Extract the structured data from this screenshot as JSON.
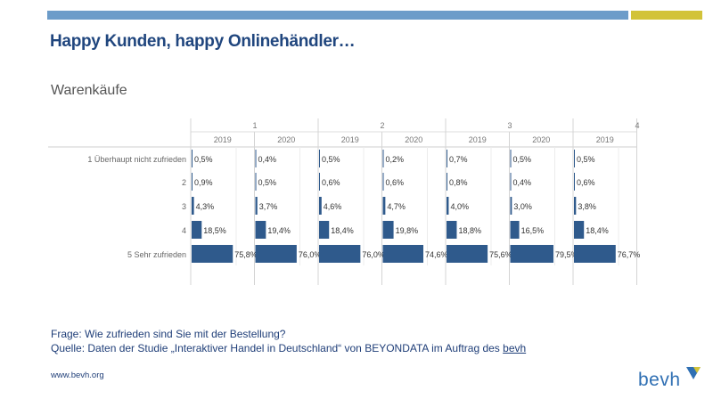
{
  "header": {
    "title": "Happy Kunden, happy Onlinehändler…",
    "subtitle": "Warenkäufe"
  },
  "footer": {
    "question": "Frage: Wie zufrieden sind Sie mit der Bestellung?",
    "source_prefix": "Quelle: Daten der Studie „Interaktiver Handel in Deutschland“ von BEYONDATA im Auftrag des ",
    "source_link": "bevh",
    "website": "www.bevh.org",
    "logo_text": "bevh"
  },
  "colors": {
    "bar": "#2f5a8c",
    "top_bar_blue": "#6c9cc9",
    "top_bar_yellow": "#d2c339",
    "title": "#20467e"
  },
  "chart_data": {
    "type": "bar",
    "orientation": "horizontal",
    "unit": "%",
    "x_range": [
      0,
      100
    ],
    "rows": [
      "1 Überhaupt nicht zufrieden",
      "2",
      "3",
      "4",
      "5 Sehr zufrieden"
    ],
    "groups": [
      {
        "label": "1",
        "columns": [
          "2019",
          "2020"
        ]
      },
      {
        "label": "2",
        "columns": [
          "2019",
          "2020"
        ]
      },
      {
        "label": "3",
        "columns": [
          "2019",
          "2020"
        ]
      },
      {
        "label": "4",
        "columns": [
          "2019"
        ]
      }
    ],
    "series": [
      {
        "group": "1",
        "year": "2019",
        "values": [
          0.5,
          0.9,
          4.3,
          18.5,
          75.8
        ],
        "labels": [
          "0,5%",
          "0,9%",
          "4,3%",
          "18,5%",
          "75,8%"
        ]
      },
      {
        "group": "1",
        "year": "2020",
        "values": [
          0.4,
          0.5,
          3.7,
          19.4,
          76.0
        ],
        "labels": [
          "0,4%",
          "0,5%",
          "3,7%",
          "19,4%",
          "76,0%"
        ]
      },
      {
        "group": "2",
        "year": "2019",
        "values": [
          0.5,
          0.6,
          4.6,
          18.4,
          76.0
        ],
        "labels": [
          "0,5%",
          "0,6%",
          "4,6%",
          "18,4%",
          "76,0%"
        ]
      },
      {
        "group": "2",
        "year": "2020",
        "values": [
          0.2,
          0.6,
          4.7,
          19.8,
          74.6
        ],
        "labels": [
          "0,2%",
          "0,6%",
          "4,7%",
          "19,8%",
          "74,6%"
        ]
      },
      {
        "group": "3",
        "year": "2019",
        "values": [
          0.7,
          0.8,
          4.0,
          18.8,
          75.6
        ],
        "labels": [
          "0,7%",
          "0,8%",
          "4,0%",
          "18,8%",
          "75,6%"
        ]
      },
      {
        "group": "3",
        "year": "2020",
        "values": [
          0.5,
          0.4,
          3.0,
          16.5,
          79.5
        ],
        "labels": [
          "0,5%",
          "0,4%",
          "3,0%",
          "16,5%",
          "79,5%"
        ]
      },
      {
        "group": "4",
        "year": "2019",
        "values": [
          0.5,
          0.6,
          3.8,
          18.4,
          76.7
        ],
        "labels": [
          "0,5%",
          "0,6%",
          "3,8%",
          "18,4%",
          "76,7%"
        ]
      }
    ]
  }
}
